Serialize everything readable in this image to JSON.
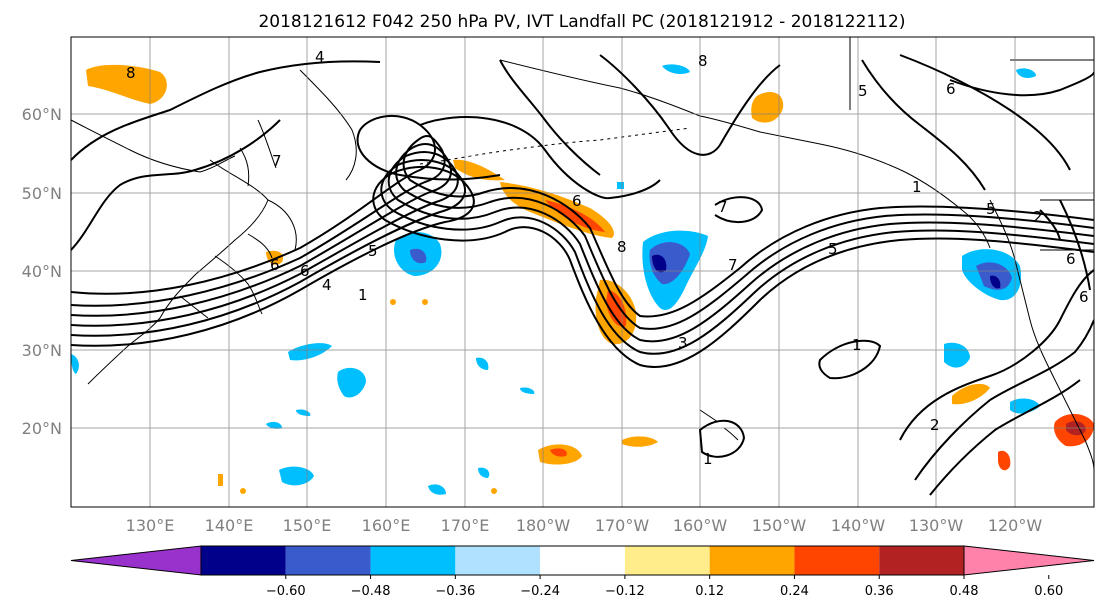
{
  "title": "2018121612 F042 250 hPa PV, IVT Landfall PC (2018121912 - 2018122112)",
  "map": {
    "lon_labels": [
      "130°E",
      "140°E",
      "150°E",
      "160°E",
      "170°E",
      "180°W",
      "170°W",
      "160°W",
      "150°W",
      "140°W",
      "130°W",
      "120°W"
    ],
    "lat_labels": [
      "60°N",
      "50°N",
      "40°N",
      "30°N",
      "20°N"
    ],
    "contour_labels": [
      "4",
      "8",
      "6",
      "5",
      "7",
      "1",
      "8",
      "6",
      "5",
      "4",
      "2",
      "1",
      "6",
      "8",
      "7",
      "5",
      "7",
      "3",
      "1",
      "2",
      "1",
      "6",
      "5",
      "6",
      "6"
    ],
    "gridline_color": "#808080",
    "coastline_color": "#000000",
    "contour_color": "#000000"
  },
  "colorbar": {
    "tick_labels": [
      "−0.60",
      "−0.48",
      "−0.36",
      "−0.24",
      "−0.12",
      "0.12",
      "0.24",
      "0.36",
      "0.48",
      "0.60"
    ],
    "colors": [
      "#9932cc",
      "#00008b",
      "#3a5bcc",
      "#00bfff",
      "#b0e2ff",
      "#ffffff",
      "#ffec8b",
      "#ffa500",
      "#ff4500",
      "#b22222",
      "#ff82ab"
    ]
  }
}
